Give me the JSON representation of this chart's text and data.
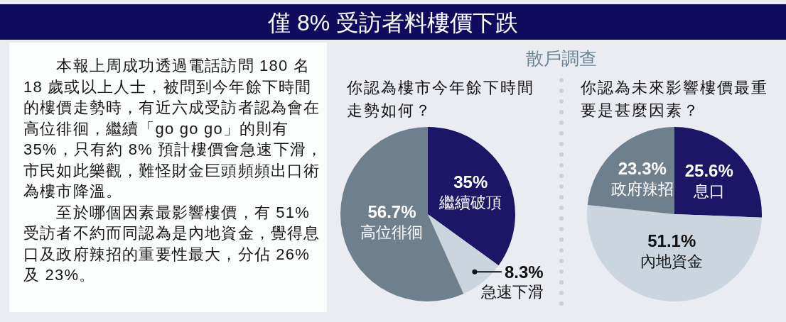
{
  "chart_data": [
    {
      "type": "other",
      "title": "僅 8% 受訪者料樓價下跌",
      "annotations": [
        "本報上周成功透過電話訪問 180 名 18 歲或以上人士，被問到今年餘下時間的樓價走勢時，有近六成受訪者認為會在高位徘徊，繼續「go go go」的則有 35%，只有約 8% 預計樓價會急速下滑，市民如此樂觀，難怪財金巨頭頻頻出口術為樓市降溫。",
        "至於哪個因素最影響樓價，有 51% 受訪者不約而同認為是內地資金，覺得息口及政府辣招的重要性最大，分佔 26% 及 23%。"
      ]
    },
    {
      "type": "pie",
      "title": "你認為樓市今年餘下時間走勢如何？",
      "annotations": [
        "散戶調查"
      ],
      "categories": [
        "繼續破頂",
        "急速下滑",
        "高位徘徊"
      ],
      "values": [
        35,
        8.3,
        56.7
      ],
      "colors": [
        "#1d1566",
        "#cad5dd",
        "#6e808e"
      ],
      "value_labels": [
        "35%",
        "8.3%",
        "56.7%"
      ]
    },
    {
      "type": "pie",
      "title": "你認為未來影響樓價最重要是甚麼因素？",
      "categories": [
        "息口",
        "內地資金",
        "政府辣招"
      ],
      "values": [
        25.6,
        51.1,
        23.3
      ],
      "colors": [
        "#1d1566",
        "#cad5dd",
        "#6e808e"
      ],
      "value_labels": [
        "25.6%",
        "51.1%",
        "23.3%"
      ]
    }
  ]
}
